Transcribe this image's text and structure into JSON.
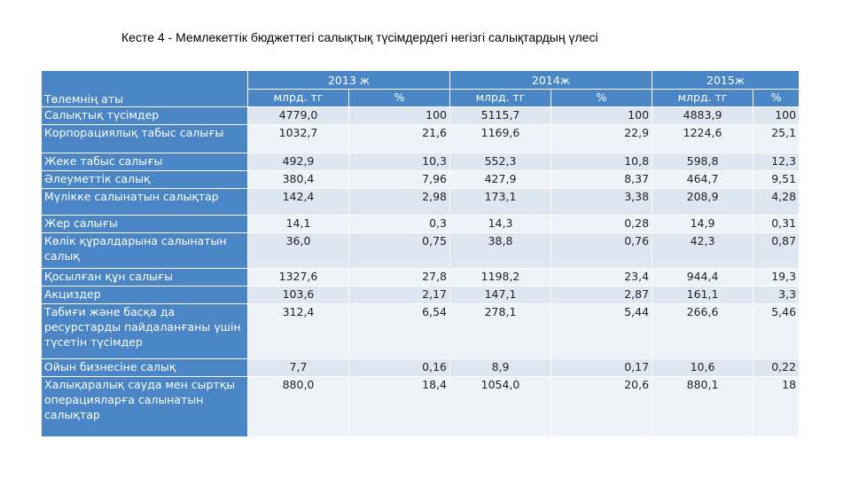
{
  "title": "Кесте 4 - Мемлекеттік бюджеттегі салықтық түсімдердегі негізгі салықтардың үлесі",
  "header": {
    "name_col": "Төлемнің аты",
    "years": [
      "2013 ж",
      "2014ж",
      "2015ж"
    ],
    "units": [
      "млрд. тг",
      "%",
      "млрд. тг",
      "%",
      "млрд. тг",
      "%"
    ]
  },
  "rows": [
    {
      "label": "Салықтық түсімдер",
      "v": [
        "4779,0",
        "100",
        "5115,7",
        "100",
        "4883,9",
        "100"
      ]
    },
    {
      "label": "Корпорациялық табыс салығы",
      "v": [
        "1032,7",
        "21,6",
        "1169,6",
        "22,9",
        "1224,6",
        "25,1"
      ]
    },
    {
      "label": "Жеке табыс салығы",
      "v": [
        "492,9",
        "10,3",
        "552,3",
        "10,8",
        "598,8",
        "12,3"
      ]
    },
    {
      "label": "Әлеуметтік салық",
      "v": [
        "380,4",
        "7,96",
        "427,9",
        "8,37",
        "464,7",
        "9,51"
      ]
    },
    {
      "label": "Мүлікке салынатын салықтар",
      "v": [
        "142,4",
        "2,98",
        "173,1",
        "3,38",
        "208,9",
        "4,28"
      ]
    },
    {
      "label": "Жер салығы",
      "v": [
        "14,1",
        "0,3",
        "14,3",
        "0,28",
        "14,9",
        "0,31"
      ]
    },
    {
      "label": "Көлік құралдарына салынатын салық",
      "v": [
        "36,0",
        "0,75",
        "38,8",
        "0,76",
        "42,3",
        "0,87"
      ]
    },
    {
      "label": "Қосылған құн салығы",
      "v": [
        "1327,6",
        "27,8",
        "1198,2",
        "23,4",
        "944,4",
        "19,3"
      ]
    },
    {
      "label": "Акциздер",
      "v": [
        "103,6",
        "2,17",
        "147,1",
        "2,87",
        "161,1",
        "3,3"
      ]
    },
    {
      "label": "Табиғи және басқа да ресурстарды пайдаланғаны үшін түсетін түсімдер",
      "v": [
        "312,4",
        "6,54",
        "278,1",
        "5,44",
        "266,6",
        "5,46"
      ]
    },
    {
      "label": "Ойын бизнесіне салық",
      "v": [
        "7,7",
        "0,16",
        "8,9",
        "0,17",
        "10,6",
        "0,22"
      ]
    },
    {
      "label": "Халықаралық сауда мен сыртқы операцияларға салынатын салықтар",
      "v": [
        "880,0",
        "18,4",
        "1054,0",
        "20,6",
        "880,1",
        "18"
      ]
    }
  ]
}
